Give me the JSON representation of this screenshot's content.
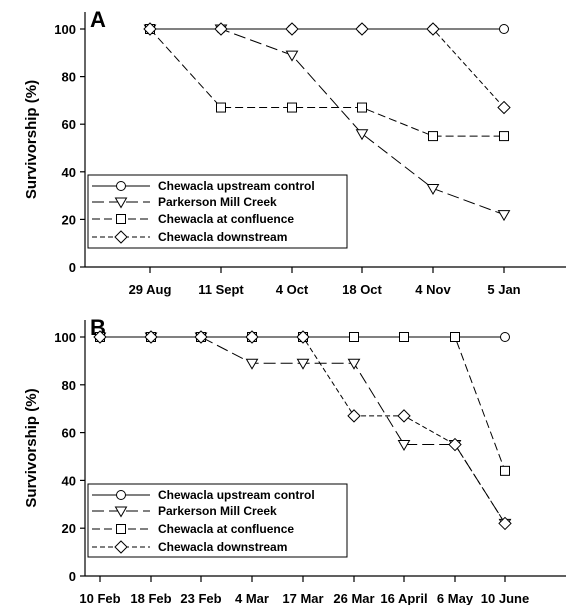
{
  "chart_data": [
    {
      "type": "line",
      "panel_label": "A",
      "ylabel": "Survivorship (%)",
      "ylim": [
        0,
        100
      ],
      "yticks": [
        0,
        20,
        40,
        60,
        80,
        100
      ],
      "categories": [
        "29 Aug",
        "11 Sept",
        "4 Oct",
        "18 Oct",
        "4 Nov",
        "5 Jan"
      ],
      "legend_position": "bottom-left",
      "series": [
        {
          "name": "Chewacla upstream control",
          "marker": "circle",
          "line": "solid",
          "values": [
            100,
            100,
            100,
            100,
            100,
            100
          ]
        },
        {
          "name": "Parkerson Mill Creek",
          "marker": "triangle-down",
          "line": "long-dash",
          "values": [
            100,
            100,
            89,
            56,
            33,
            22
          ]
        },
        {
          "name": "Chewacla at confluence",
          "marker": "square",
          "line": "medium-dash",
          "values": [
            100,
            67,
            67,
            67,
            55,
            55
          ]
        },
        {
          "name": "Chewacla downstream",
          "marker": "diamond",
          "line": "short-dash",
          "values": [
            100,
            100,
            100,
            100,
            100,
            67
          ]
        }
      ]
    },
    {
      "type": "line",
      "panel_label": "B",
      "ylabel": "Survivorship (%)",
      "ylim": [
        0,
        100
      ],
      "yticks": [
        0,
        20,
        40,
        60,
        80,
        100
      ],
      "categories": [
        "10 Feb",
        "18 Feb",
        "23 Feb",
        "4 Mar",
        "17 Mar",
        "26 Mar",
        "16 April",
        "6 May",
        "10 June"
      ],
      "legend_position": "bottom-left",
      "series": [
        {
          "name": "Chewacla upstream control",
          "marker": "circle",
          "line": "solid",
          "values": [
            100,
            100,
            100,
            100,
            100,
            100,
            100,
            100,
            100
          ]
        },
        {
          "name": "Parkerson Mill Creek",
          "marker": "triangle-down",
          "line": "long-dash",
          "values": [
            100,
            100,
            100,
            89,
            89,
            89,
            55,
            55,
            22
          ]
        },
        {
          "name": "Chewacla at confluence",
          "marker": "square",
          "line": "medium-dash",
          "values": [
            100,
            100,
            100,
            100,
            100,
            100,
            100,
            100,
            44
          ]
        },
        {
          "name": "Chewacla downstream",
          "marker": "diamond",
          "line": "short-dash",
          "values": [
            100,
            100,
            100,
            100,
            100,
            67,
            67,
            55,
            22
          ]
        }
      ]
    }
  ]
}
